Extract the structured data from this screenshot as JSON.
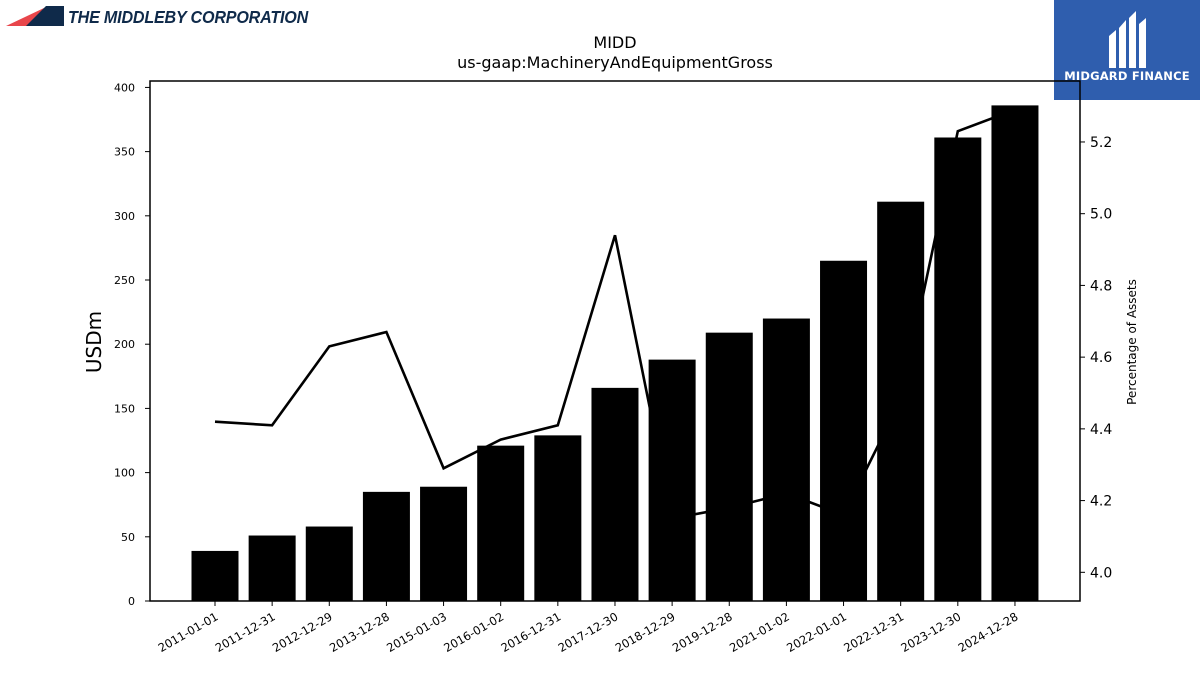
{
  "logos": {
    "left_text": "THE MIDDLEBY CORPORATION",
    "right_text": "MIDGARD FINANCE",
    "colors": {
      "left_red": "#e8464b",
      "left_navy": "#0f2a4a",
      "right_bg": "#2f5eae"
    }
  },
  "chart_data": {
    "type": "bar",
    "title": "MIDD",
    "subtitle": "us-gaap:MachineryAndEquipmentGross",
    "ylabel": "USDm",
    "y2label": "Percentage of Assets",
    "categories": [
      "2011-01-01",
      "2011-12-31",
      "2012-12-29",
      "2013-12-28",
      "2015-01-03",
      "2016-01-02",
      "2016-12-31",
      "2017-12-30",
      "2018-12-29",
      "2019-12-28",
      "2021-01-02",
      "2022-01-01",
      "2022-12-31",
      "2023-12-30",
      "2024-12-28"
    ],
    "ylim": [
      0,
      405
    ],
    "y2lim": [
      3.92,
      5.37
    ],
    "yticks": [
      0,
      50,
      100,
      150,
      200,
      250,
      300,
      350,
      400
    ],
    "y2ticks": [
      "4.0",
      "4.2",
      "4.4",
      "4.6",
      "4.8",
      "5.0",
      "5.2"
    ],
    "series": [
      {
        "type": "bar",
        "axis": "left",
        "color": "#000000",
        "values": [
          39,
          51,
          58,
          85,
          89,
          121,
          129,
          166,
          188,
          209,
          220,
          265,
          311,
          361,
          386
        ]
      },
      {
        "type": "line",
        "axis": "right",
        "color": "#000000",
        "values": [
          4.42,
          4.41,
          4.63,
          4.67,
          4.29,
          4.37,
          4.41,
          4.94,
          4.15,
          4.18,
          4.22,
          4.16,
          4.48,
          5.23,
          5.29
        ]
      }
    ],
    "grid": false,
    "legend": "none"
  }
}
